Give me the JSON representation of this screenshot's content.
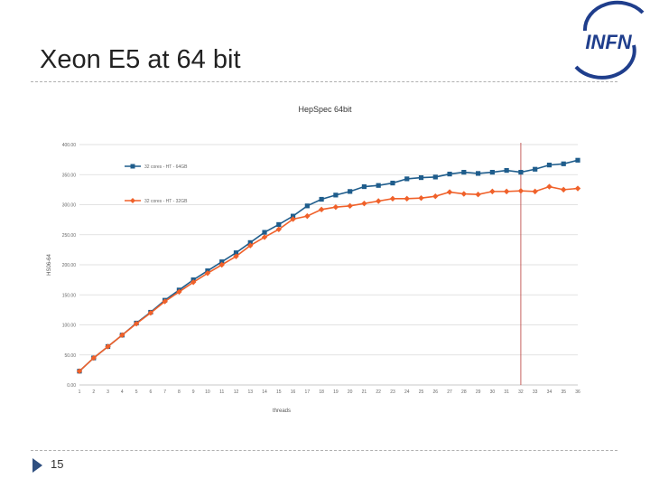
{
  "slide": {
    "title": "Xeon E5 at 64 bit",
    "page_number": "15",
    "logo_text": "INFN"
  },
  "colors": {
    "series_blue": "#1f5d8c",
    "series_orange": "#f0612a",
    "marker_line": "#c0504d",
    "grid": "#d9d9d9",
    "logo_blue": "#1f3e8c",
    "footer_arrow": "#2f4f80"
  },
  "chart_data": {
    "type": "line",
    "title": "HepSpec 64bit",
    "xlabel": "threads",
    "ylabel": "HS06-64",
    "ylim": [
      0,
      400
    ],
    "yticks": [
      "0.00",
      "50.00",
      "100.00",
      "150.00",
      "200.00",
      "250.00",
      "300.00",
      "350.00",
      "400.00"
    ],
    "x": [
      1,
      2,
      3,
      4,
      5,
      6,
      7,
      8,
      9,
      10,
      11,
      12,
      13,
      14,
      15,
      16,
      17,
      18,
      19,
      20,
      21,
      22,
      23,
      24,
      25,
      26,
      27,
      28,
      29,
      30,
      31,
      32,
      33,
      34,
      35,
      36
    ],
    "vertical_marker_x": 32,
    "grid": true,
    "legend_position": "top-left",
    "series": [
      {
        "name": "32 cores - HT - 64GB",
        "color": "#1f5d8c",
        "marker": "square",
        "values": [
          23,
          45,
          64,
          83,
          103,
          121,
          141,
          158,
          175,
          190,
          205,
          220,
          237,
          254,
          267,
          281,
          298,
          309,
          316,
          322,
          330,
          332,
          336,
          343,
          345,
          346,
          351,
          354,
          352,
          354,
          357,
          354,
          359,
          366,
          368,
          374
        ]
      },
      {
        "name": "32 cores - HT - 32GB",
        "color": "#f0612a",
        "marker": "diamond",
        "values": [
          23,
          45,
          64,
          83,
          102,
          120,
          139,
          155,
          171,
          186,
          200,
          214,
          232,
          246,
          259,
          276,
          281,
          292,
          296,
          298,
          302,
          306,
          310,
          310,
          311,
          314,
          321,
          318,
          317,
          322,
          322,
          323,
          322,
          330,
          325,
          327
        ]
      }
    ]
  }
}
